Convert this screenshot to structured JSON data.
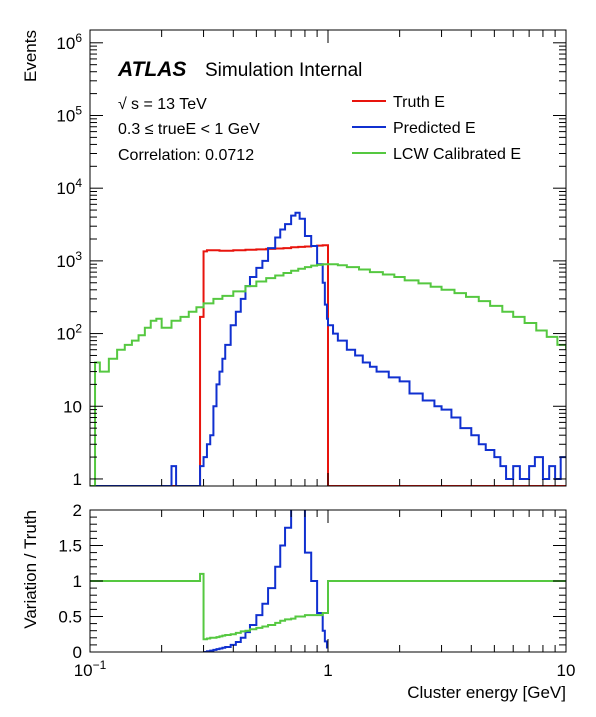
{
  "chart_data": [
    {
      "type": "line",
      "panel": "main",
      "ylabel": "Events",
      "xscale": "log",
      "yscale": "log",
      "xlim": [
        0.1,
        10
      ],
      "ylim": [
        0.8,
        1500000
      ],
      "yticks": [
        {
          "value": 1,
          "base": "1",
          "exp": ""
        },
        {
          "value": 10,
          "base": "10",
          "exp": ""
        },
        {
          "value": 100,
          "base": "10",
          "exp": "2"
        },
        {
          "value": 1000,
          "base": "10",
          "exp": "3"
        },
        {
          "value": 10000,
          "base": "10",
          "exp": "4"
        },
        {
          "value": 100000,
          "base": "10",
          "exp": "5"
        },
        {
          "value": 1000000,
          "base": "10",
          "exp": "6"
        }
      ],
      "annotations": {
        "experiment": "ATLAS",
        "status": "Simulation Internal",
        "energy_sqrt": "√",
        "energy_rest": "s = 13 TeV",
        "range": "0.3 ≤ trueE < 1 GeV",
        "correlation": "Correlation: 0.0712"
      },
      "legend_position": "top-right",
      "series": [
        {
          "name": "Truth E",
          "color": "#e8140d",
          "x": [
            0.1,
            0.29,
            0.29,
            0.3,
            0.3,
            0.31,
            0.31,
            0.35,
            0.4,
            0.45,
            0.5,
            0.55,
            0.6,
            0.65,
            0.7,
            0.75,
            0.8,
            0.85,
            0.9,
            0.95,
            1.0,
            1.0,
            10
          ],
          "y": [
            0.8,
            0.8,
            170,
            170,
            1350,
            1350,
            1400,
            1380,
            1400,
            1420,
            1440,
            1460,
            1480,
            1500,
            1540,
            1560,
            1580,
            1600,
            1620,
            1640,
            1640,
            0.8,
            0.8
          ]
        },
        {
          "name": "Predicted E",
          "color": "#1030d0",
          "x": [
            0.1,
            0.22,
            0.22,
            0.23,
            0.23,
            0.28,
            0.29,
            0.3,
            0.31,
            0.32,
            0.33,
            0.34,
            0.35,
            0.36,
            0.37,
            0.39,
            0.41,
            0.43,
            0.45,
            0.47,
            0.5,
            0.53,
            0.56,
            0.6,
            0.63,
            0.66,
            0.7,
            0.73,
            0.76,
            0.8,
            0.85,
            0.9,
            0.95,
            0.97,
            0.99,
            1.0,
            1.05,
            1.1,
            1.2,
            1.3,
            1.4,
            1.5,
            1.6,
            1.8,
            2.0,
            2.2,
            2.5,
            2.8,
            3.0,
            3.3,
            3.6,
            4.0,
            4.3,
            4.6,
            5.0,
            5.3,
            5.6,
            6.0,
            6.4,
            7.0,
            7.4,
            8.0,
            8.5,
            9.0,
            9.5,
            10
          ],
          "y": [
            0.8,
            0.8,
            1.5,
            1.5,
            0.8,
            0.8,
            1.5,
            2,
            3,
            4,
            10,
            20,
            30,
            45,
            70,
            130,
            200,
            300,
            450,
            600,
            800,
            1000,
            1500,
            2100,
            2700,
            3200,
            4200,
            4600,
            3800,
            2200,
            1600,
            900,
            500,
            250,
            160,
            130,
            100,
            80,
            60,
            50,
            40,
            35,
            30,
            25,
            22,
            15,
            12,
            10,
            9,
            7,
            5,
            4,
            3,
            2.5,
            2,
            1.5,
            1,
            1.5,
            1,
            1.5,
            2,
            1,
            1.5,
            1,
            2,
            2
          ]
        },
        {
          "name": "LCW Calibrated E",
          "color": "#55c840",
          "x": [
            0.1,
            0.105,
            0.11,
            0.12,
            0.13,
            0.14,
            0.15,
            0.16,
            0.17,
            0.18,
            0.19,
            0.2,
            0.22,
            0.24,
            0.26,
            0.28,
            0.3,
            0.33,
            0.36,
            0.4,
            0.45,
            0.5,
            0.55,
            0.6,
            0.65,
            0.7,
            0.75,
            0.8,
            0.85,
            0.9,
            0.95,
            1.0,
            1.1,
            1.2,
            1.35,
            1.5,
            1.7,
            1.9,
            2.1,
            2.4,
            2.7,
            3.0,
            3.4,
            3.8,
            4.3,
            4.8,
            5.4,
            6.0,
            6.7,
            7.5,
            8.3,
            9.2,
            10
          ],
          "y": [
            0.8,
            40,
            30,
            45,
            60,
            70,
            80,
            95,
            120,
            150,
            160,
            120,
            150,
            170,
            200,
            230,
            260,
            300,
            330,
            380,
            450,
            520,
            580,
            630,
            680,
            730,
            780,
            820,
            860,
            880,
            900,
            900,
            870,
            820,
            760,
            700,
            650,
            600,
            540,
            490,
            440,
            400,
            360,
            320,
            280,
            240,
            200,
            170,
            140,
            110,
            90,
            70,
            60
          ]
        }
      ]
    },
    {
      "type": "line",
      "panel": "ratio",
      "xlabel": "Cluster energy [GeV]",
      "ylabel": "Variation / Truth",
      "xscale": "log",
      "xlim": [
        0.1,
        10
      ],
      "ylim": [
        0,
        2
      ],
      "yticks": [
        0,
        0.5,
        1,
        1.5,
        2
      ],
      "xticks": [
        {
          "value": 0.1,
          "base": "10",
          "exp": "−1"
        },
        {
          "value": 1,
          "base": "1",
          "exp": ""
        },
        {
          "value": 10,
          "base": "10",
          "exp": ""
        }
      ],
      "series": [
        {
          "name": "Predicted E",
          "color": "#1030d0",
          "x": [
            0.3,
            0.31,
            0.32,
            0.33,
            0.34,
            0.35,
            0.36,
            0.37,
            0.39,
            0.41,
            0.43,
            0.45,
            0.47,
            0.5,
            0.53,
            0.56,
            0.6,
            0.63,
            0.66,
            0.7,
            0.73,
            0.76,
            0.8,
            0.85,
            0.9,
            0.95,
            0.97,
            0.99
          ],
          "y": [
            0.0,
            0.01,
            0.02,
            0.03,
            0.04,
            0.05,
            0.06,
            0.07,
            0.1,
            0.14,
            0.2,
            0.28,
            0.38,
            0.52,
            0.68,
            0.9,
            1.2,
            1.5,
            1.75,
            2.2,
            2.5,
            2.4,
            1.4,
            1.0,
            0.55,
            0.3,
            0.15,
            0.05
          ]
        },
        {
          "name": "LCW Calibrated E",
          "color": "#55c840",
          "x": [
            0.1,
            0.29,
            0.29,
            0.3,
            0.3,
            0.31,
            0.32,
            0.33,
            0.34,
            0.35,
            0.36,
            0.37,
            0.39,
            0.41,
            0.43,
            0.45,
            0.47,
            0.5,
            0.53,
            0.56,
            0.6,
            0.63,
            0.66,
            0.7,
            0.73,
            0.76,
            0.8,
            0.85,
            0.9,
            0.95,
            1.0,
            1.0,
            10
          ],
          "y": [
            1.0,
            1.0,
            1.1,
            1.1,
            0.18,
            0.19,
            0.2,
            0.2,
            0.21,
            0.22,
            0.23,
            0.24,
            0.25,
            0.27,
            0.29,
            0.3,
            0.32,
            0.34,
            0.36,
            0.38,
            0.41,
            0.44,
            0.46,
            0.47,
            0.5,
            0.5,
            0.52,
            0.52,
            0.52,
            0.55,
            0.55,
            1.0,
            1.0
          ]
        }
      ]
    }
  ]
}
